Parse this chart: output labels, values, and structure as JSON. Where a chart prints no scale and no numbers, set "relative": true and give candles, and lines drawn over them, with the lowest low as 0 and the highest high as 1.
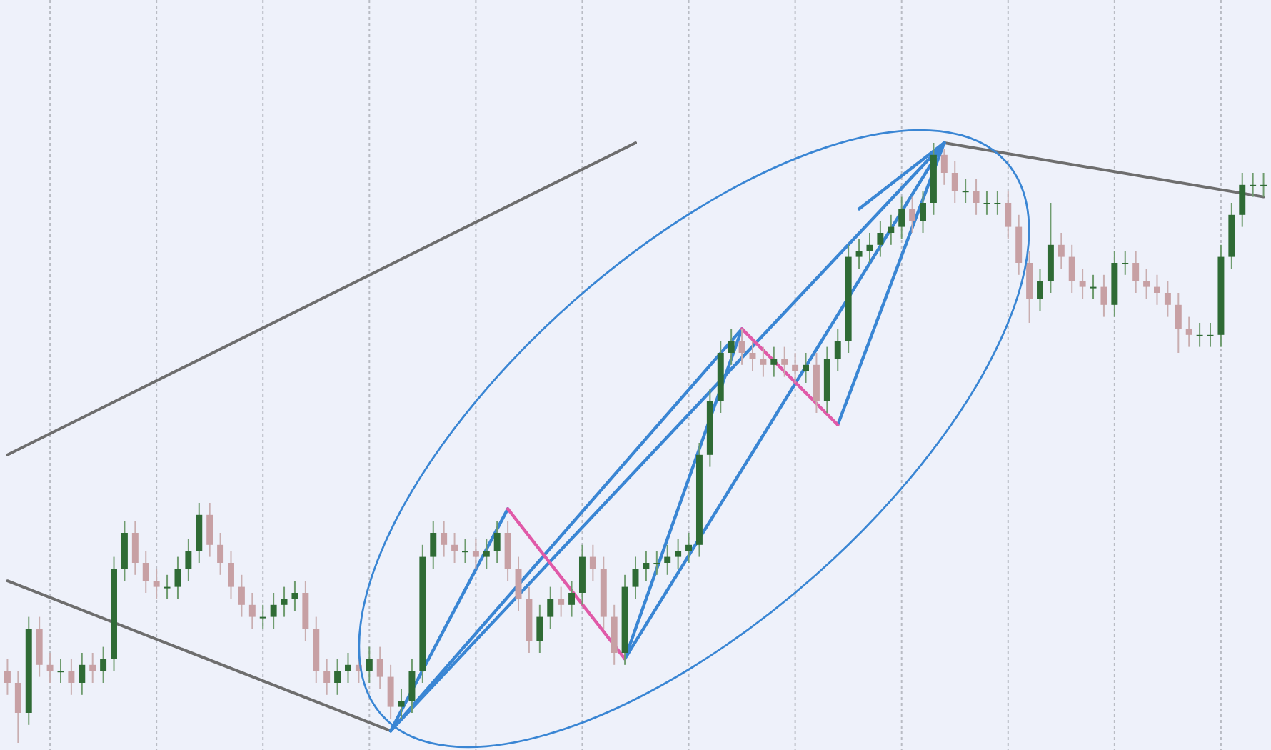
{
  "chart_data": {
    "type": "candlestick",
    "relative": true,
    "grid": "x",
    "categories": [
      null,
      null,
      null,
      null,
      null,
      null,
      null,
      null,
      null,
      null,
      null,
      null,
      null,
      null,
      null,
      null,
      null,
      null,
      null,
      null,
      null,
      null,
      null,
      null,
      null,
      null,
      null,
      null,
      null,
      null,
      null,
      null,
      null,
      null,
      null,
      null,
      null,
      null,
      null,
      null,
      null,
      null,
      null,
      null,
      null,
      null,
      null,
      null,
      null,
      null,
      null,
      null,
      null,
      null,
      null,
      null,
      null,
      null,
      null,
      null,
      null,
      null,
      null,
      null,
      null,
      null,
      null,
      null,
      null,
      null,
      null,
      null,
      null,
      null,
      null,
      null,
      null,
      null,
      null,
      null,
      null,
      null,
      null,
      null,
      null,
      null,
      null,
      null,
      null,
      null,
      null,
      null,
      null,
      null,
      null,
      null,
      null,
      null,
      null,
      null,
      null,
      null,
      null,
      null,
      null,
      null,
      null,
      null,
      null,
      null,
      null,
      null,
      null,
      null,
      null,
      null,
      null,
      null,
      null
    ],
    "ohlc": [
      [
        0.12,
        0.14,
        0.08,
        0.1
      ],
      [
        0.1,
        0.12,
        0,
        0.05
      ],
      [
        0.05,
        0.21,
        0.03,
        0.19
      ],
      [
        0.19,
        0.21,
        0.11,
        0.13
      ],
      [
        0.13,
        0.15,
        0.1,
        0.12
      ],
      [
        0.12,
        0.14,
        0.1,
        0.12
      ],
      [
        0.12,
        0.14,
        0.08,
        0.1
      ],
      [
        0.1,
        0.15,
        0.08,
        0.13
      ],
      [
        0.13,
        0.15,
        0.1,
        0.12
      ],
      [
        0.12,
        0.16,
        0.1,
        0.14
      ],
      [
        0.14,
        0.31,
        0.12,
        0.29
      ],
      [
        0.29,
        0.37,
        0.27,
        0.35
      ],
      [
        0.35,
        0.37,
        0.28,
        0.3
      ],
      [
        0.3,
        0.32,
        0.25,
        0.27
      ],
      [
        0.27,
        0.29,
        0.24,
        0.26
      ],
      [
        0.26,
        0.28,
        0.24,
        0.26
      ],
      [
        0.26,
        0.31,
        0.24,
        0.29
      ],
      [
        0.29,
        0.34,
        0.27,
        0.32
      ],
      [
        0.32,
        0.4,
        0.3,
        0.38
      ],
      [
        0.38,
        0.4,
        0.31,
        0.33
      ],
      [
        0.33,
        0.35,
        0.28,
        0.3
      ],
      [
        0.3,
        0.32,
        0.24,
        0.26
      ],
      [
        0.26,
        0.28,
        0.21,
        0.23
      ],
      [
        0.23,
        0.25,
        0.19,
        0.21
      ],
      [
        0.21,
        0.23,
        0.19,
        0.21
      ],
      [
        0.21,
        0.25,
        0.19,
        0.23
      ],
      [
        0.23,
        0.26,
        0.21,
        0.24
      ],
      [
        0.24,
        0.27,
        0.22,
        0.25
      ],
      [
        0.25,
        0.27,
        0.17,
        0.19
      ],
      [
        0.19,
        0.21,
        0.1,
        0.12
      ],
      [
        0.12,
        0.14,
        0.08,
        0.1
      ],
      [
        0.1,
        0.14,
        0.08,
        0.12
      ],
      [
        0.12,
        0.15,
        0.1,
        0.13
      ],
      [
        0.13,
        0.15,
        0.1,
        0.12
      ],
      [
        0.12,
        0.16,
        0.1,
        0.14
      ],
      [
        0.14,
        0.16,
        0.09,
        0.11
      ],
      [
        0.11,
        0.13,
        0.04,
        0.06
      ],
      [
        0.06,
        0.09,
        0.04,
        0.07
      ],
      [
        0.07,
        0.14,
        0.05,
        0.12
      ],
      [
        0.12,
        0.33,
        0.1,
        0.31
      ],
      [
        0.31,
        0.37,
        0.29,
        0.35
      ],
      [
        0.35,
        0.37,
        0.31,
        0.33
      ],
      [
        0.33,
        0.35,
        0.3,
        0.32
      ],
      [
        0.32,
        0.34,
        0.3,
        0.32
      ],
      [
        0.32,
        0.34,
        0.29,
        0.31
      ],
      [
        0.31,
        0.34,
        0.29,
        0.32
      ],
      [
        0.32,
        0.37,
        0.3,
        0.35
      ],
      [
        0.35,
        0.37,
        0.27,
        0.29
      ],
      [
        0.29,
        0.31,
        0.22,
        0.24
      ],
      [
        0.24,
        0.26,
        0.15,
        0.17
      ],
      [
        0.17,
        0.23,
        0.15,
        0.21
      ],
      [
        0.21,
        0.26,
        0.19,
        0.24
      ],
      [
        0.24,
        0.26,
        0.21,
        0.23
      ],
      [
        0.23,
        0.27,
        0.21,
        0.25
      ],
      [
        0.25,
        0.33,
        0.23,
        0.31
      ],
      [
        0.31,
        0.33,
        0.27,
        0.29
      ],
      [
        0.29,
        0.31,
        0.19,
        0.21
      ],
      [
        0.21,
        0.23,
        0.13,
        0.15
      ],
      [
        0.15,
        0.28,
        0.13,
        0.26
      ],
      [
        0.26,
        0.31,
        0.24,
        0.29
      ],
      [
        0.29,
        0.32,
        0.27,
        0.3
      ],
      [
        0.3,
        0.32,
        0.28,
        0.3
      ],
      [
        0.3,
        0.33,
        0.28,
        0.31
      ],
      [
        0.31,
        0.34,
        0.29,
        0.32
      ],
      [
        0.32,
        0.35,
        0.3,
        0.33
      ],
      [
        0.33,
        0.5,
        0.31,
        0.48
      ],
      [
        0.48,
        0.59,
        0.46,
        0.57
      ],
      [
        0.57,
        0.67,
        0.55,
        0.65
      ],
      [
        0.65,
        0.69,
        0.63,
        0.67
      ],
      [
        0.67,
        0.69,
        0.63,
        0.65
      ],
      [
        0.65,
        0.67,
        0.62,
        0.64
      ],
      [
        0.64,
        0.66,
        0.61,
        0.63
      ],
      [
        0.63,
        0.66,
        0.61,
        0.64
      ],
      [
        0.64,
        0.66,
        0.61,
        0.63
      ],
      [
        0.63,
        0.65,
        0.6,
        0.62
      ],
      [
        0.62,
        0.65,
        0.6,
        0.63
      ],
      [
        0.63,
        0.65,
        0.55,
        0.57
      ],
      [
        0.57,
        0.66,
        0.55,
        0.64
      ],
      [
        0.64,
        0.69,
        0.62,
        0.67
      ],
      [
        0.67,
        0.83,
        0.65,
        0.81
      ],
      [
        0.81,
        0.84,
        0.79,
        0.82
      ],
      [
        0.82,
        0.85,
        0.8,
        0.83
      ],
      [
        0.83,
        0.87,
        0.81,
        0.85
      ],
      [
        0.85,
        0.88,
        0.83,
        0.86
      ],
      [
        0.86,
        0.91,
        0.84,
        0.89
      ],
      [
        0.89,
        0.91,
        0.85,
        0.87
      ],
      [
        0.87,
        0.92,
        0.85,
        0.9
      ],
      [
        0.9,
        1,
        0.88,
        0.98
      ],
      [
        0.98,
        0.99,
        0.93,
        0.95
      ],
      [
        0.95,
        0.97,
        0.9,
        0.92
      ],
      [
        0.92,
        0.94,
        0.9,
        0.92
      ],
      [
        0.92,
        0.94,
        0.88,
        0.9
      ],
      [
        0.9,
        0.92,
        0.88,
        0.9
      ],
      [
        0.9,
        0.92,
        0.88,
        0.9
      ],
      [
        0.9,
        0.92,
        0.84,
        0.86
      ],
      [
        0.86,
        0.88,
        0.78,
        0.8
      ],
      [
        0.8,
        0.82,
        0.7,
        0.74
      ],
      [
        0.74,
        0.79,
        0.72,
        0.77
      ],
      [
        0.77,
        0.9,
        0.75,
        0.83
      ],
      [
        0.83,
        0.85,
        0.79,
        0.81
      ],
      [
        0.81,
        0.83,
        0.75,
        0.77
      ],
      [
        0.77,
        0.79,
        0.74,
        0.76
      ],
      [
        0.76,
        0.78,
        0.74,
        0.76
      ],
      [
        0.76,
        0.78,
        0.71,
        0.73
      ],
      [
        0.73,
        0.82,
        0.71,
        0.8
      ],
      [
        0.8,
        0.82,
        0.78,
        0.8
      ],
      [
        0.8,
        0.82,
        0.75,
        0.77
      ],
      [
        0.77,
        0.79,
        0.74,
        0.76
      ],
      [
        0.76,
        0.78,
        0.73,
        0.75
      ],
      [
        0.75,
        0.77,
        0.71,
        0.73
      ],
      [
        0.73,
        0.75,
        0.65,
        0.69
      ],
      [
        0.69,
        0.71,
        0.66,
        0.68
      ],
      [
        0.68,
        0.7,
        0.66,
        0.68
      ],
      [
        0.68,
        0.7,
        0.66,
        0.68
      ],
      [
        0.68,
        0.83,
        0.66,
        0.81
      ],
      [
        0.81,
        0.9,
        0.79,
        0.88
      ],
      [
        0.88,
        0.95,
        0.86,
        0.93
      ],
      [
        0.93,
        0.95,
        0.91,
        0.93
      ],
      [
        0.93,
        0.95,
        0.91,
        0.93
      ]
    ],
    "series": [
      {
        "type": "line",
        "color": "#6e6e6e",
        "values": [
          0.27,
          null,
          null,
          null,
          null,
          null,
          null,
          null,
          null,
          null,
          null,
          null,
          null,
          null,
          null,
          null,
          null,
          null,
          null,
          null,
          null,
          null,
          null,
          null,
          null,
          null,
          null,
          null,
          null,
          null,
          null,
          null,
          null,
          null,
          null,
          null,
          0.02,
          null,
          null,
          null,
          null,
          null,
          null,
          null,
          null,
          null,
          null,
          null,
          null,
          null,
          null,
          null,
          null,
          null,
          null,
          null,
          null,
          null,
          null,
          null,
          null,
          null,
          null,
          null,
          null,
          null,
          null,
          null,
          null,
          null,
          null,
          null,
          null,
          null,
          null,
          null,
          null,
          null,
          null,
          null,
          null,
          null,
          null,
          null,
          null,
          null,
          null,
          null,
          null,
          null,
          null,
          null,
          null,
          null,
          null,
          null,
          null,
          null,
          null,
          null,
          null,
          null,
          null,
          null,
          null,
          null,
          null,
          null,
          null,
          null,
          null,
          null,
          null,
          null,
          null,
          null,
          null,
          null,
          null
        ]
      },
      {
        "type": "line",
        "color": "#6e6e6e",
        "values": [
          0.48,
          null,
          null,
          null,
          null,
          null,
          null,
          null,
          null,
          null,
          null,
          null,
          null,
          null,
          null,
          null,
          null,
          null,
          null,
          null,
          null,
          null,
          null,
          null,
          null,
          null,
          null,
          null,
          null,
          null,
          null,
          null,
          null,
          null,
          null,
          null,
          null,
          null,
          null,
          null,
          null,
          null,
          null,
          null,
          null,
          null,
          null,
          null,
          null,
          null,
          null,
          null,
          null,
          null,
          null,
          null,
          null,
          null,
          null,
          1,
          null,
          null,
          null,
          null,
          null,
          null,
          null,
          null,
          null,
          null,
          null,
          null,
          null,
          null,
          null,
          null,
          null,
          null,
          null,
          null,
          null,
          null,
          null,
          null,
          null,
          null,
          null,
          null,
          null,
          null,
          null,
          null,
          null,
          null,
          null,
          null,
          null,
          null,
          null,
          null,
          null,
          null,
          null,
          null,
          null,
          null,
          null,
          null,
          null,
          null,
          null,
          null,
          null,
          null,
          null,
          null,
          null,
          null,
          null
        ]
      },
      {
        "type": "line",
        "color": "#6e6e6e",
        "values": [
          null,
          null,
          null,
          null,
          null,
          null,
          null,
          null,
          null,
          null,
          null,
          null,
          null,
          null,
          null,
          null,
          null,
          null,
          null,
          null,
          null,
          null,
          null,
          null,
          null,
          null,
          null,
          null,
          null,
          null,
          null,
          null,
          null,
          null,
          null,
          null,
          null,
          null,
          null,
          null,
          null,
          null,
          null,
          null,
          null,
          null,
          null,
          null,
          null,
          null,
          null,
          null,
          null,
          null,
          null,
          null,
          null,
          null,
          null,
          null,
          null,
          null,
          null,
          null,
          null,
          null,
          null,
          null,
          null,
          null,
          null,
          null,
          null,
          null,
          null,
          null,
          null,
          null,
          null,
          null,
          null,
          null,
          null,
          null,
          null,
          null,
          null,
          null,
          1,
          null,
          null,
          null,
          null,
          null,
          null,
          null,
          null,
          null,
          null,
          null,
          null,
          null,
          null,
          null,
          null,
          null,
          null,
          null,
          null,
          null,
          null,
          null,
          null,
          null,
          null,
          null,
          null,
          null,
          0.91
        ]
      },
      {
        "type": "line",
        "color": "#3a86d4",
        "values": [
          null,
          null,
          null,
          null,
          null,
          null,
          null,
          null,
          null,
          null,
          null,
          null,
          null,
          null,
          null,
          null,
          null,
          null,
          null,
          null,
          null,
          null,
          null,
          null,
          null,
          null,
          null,
          null,
          null,
          null,
          null,
          null,
          null,
          null,
          null,
          null,
          0.02,
          null,
          null,
          null,
          null,
          null,
          null,
          null,
          null,
          null,
          null,
          0.39,
          null,
          null,
          null,
          null,
          null,
          null,
          null,
          null,
          null,
          null,
          null,
          null,
          null,
          null,
          null,
          null,
          null,
          null,
          null,
          null,
          null,
          null,
          null,
          null,
          null,
          null,
          null,
          null,
          null,
          null,
          null,
          null,
          null,
          null,
          null,
          null,
          null,
          null,
          null,
          null,
          null,
          null,
          null,
          null,
          null,
          null,
          null,
          null,
          null,
          null,
          null,
          null,
          null,
          null,
          null,
          null,
          null,
          null,
          null,
          null,
          null,
          null,
          null,
          null,
          null,
          null,
          null,
          null,
          null,
          null,
          null
        ]
      },
      {
        "type": "line",
        "color": "#3a86d4",
        "values": [
          null,
          null,
          null,
          null,
          null,
          null,
          null,
          null,
          null,
          null,
          null,
          null,
          null,
          null,
          null,
          null,
          null,
          null,
          null,
          null,
          null,
          null,
          null,
          null,
          null,
          null,
          null,
          null,
          null,
          null,
          null,
          null,
          null,
          null,
          null,
          null,
          0.02,
          null,
          null,
          null,
          null,
          null,
          null,
          null,
          null,
          null,
          null,
          null,
          null,
          null,
          null,
          null,
          null,
          null,
          null,
          null,
          null,
          null,
          null,
          null,
          null,
          null,
          null,
          null,
          null,
          null,
          null,
          null,
          null,
          0.69,
          null,
          null,
          null,
          null,
          null,
          null,
          null,
          null,
          null,
          null,
          null,
          null,
          null,
          null,
          null,
          null,
          null,
          null,
          null,
          null,
          null,
          null,
          null,
          null,
          null,
          null,
          null,
          null,
          null,
          null,
          null,
          null,
          null,
          null,
          null,
          null,
          null,
          null,
          null,
          null,
          null,
          null,
          null,
          null,
          null,
          null,
          null,
          null,
          null
        ]
      },
      {
        "type": "line",
        "color": "#3a86d4",
        "values": [
          null,
          null,
          null,
          null,
          null,
          null,
          null,
          null,
          null,
          null,
          null,
          null,
          null,
          null,
          null,
          null,
          null,
          null,
          null,
          null,
          null,
          null,
          null,
          null,
          null,
          null,
          null,
          null,
          null,
          null,
          null,
          null,
          null,
          null,
          null,
          null,
          0.02,
          null,
          null,
          null,
          null,
          null,
          null,
          null,
          null,
          null,
          null,
          null,
          null,
          null,
          null,
          null,
          null,
          null,
          null,
          null,
          null,
          null,
          null,
          null,
          null,
          null,
          null,
          null,
          null,
          null,
          null,
          null,
          null,
          null,
          null,
          null,
          null,
          null,
          null,
          null,
          null,
          null,
          null,
          null,
          null,
          null,
          null,
          null,
          null,
          null,
          null,
          null,
          1,
          null,
          null,
          null,
          null,
          null,
          null,
          null,
          null,
          null,
          null,
          null,
          null,
          null,
          null,
          null,
          null,
          null,
          null,
          null,
          null,
          null,
          null,
          null,
          null,
          null,
          null,
          null,
          null,
          null,
          null
        ]
      },
      {
        "type": "line",
        "color": "#3a86d4",
        "values": [
          null,
          null,
          null,
          null,
          null,
          null,
          null,
          null,
          null,
          null,
          null,
          null,
          null,
          null,
          null,
          null,
          null,
          null,
          null,
          null,
          null,
          null,
          null,
          null,
          null,
          null,
          null,
          null,
          null,
          null,
          null,
          null,
          null,
          null,
          null,
          null,
          null,
          null,
          null,
          null,
          null,
          null,
          null,
          null,
          null,
          null,
          null,
          null,
          null,
          null,
          null,
          null,
          null,
          null,
          null,
          null,
          null,
          null,
          0.14,
          null,
          null,
          null,
          null,
          null,
          null,
          null,
          null,
          null,
          null,
          0.69,
          null,
          null,
          null,
          null,
          null,
          null,
          null,
          null,
          null,
          null,
          null,
          null,
          null,
          null,
          null,
          null,
          null,
          null,
          null,
          null,
          null,
          null,
          null,
          null,
          null,
          null,
          null,
          null,
          null,
          null,
          null,
          null,
          null,
          null,
          null,
          null,
          null,
          null,
          null,
          null,
          null,
          null,
          null,
          null,
          null,
          null,
          null,
          null,
          null
        ]
      },
      {
        "type": "line",
        "color": "#3a86d4",
        "values": [
          null,
          null,
          null,
          null,
          null,
          null,
          null,
          null,
          null,
          null,
          null,
          null,
          null,
          null,
          null,
          null,
          null,
          null,
          null,
          null,
          null,
          null,
          null,
          null,
          null,
          null,
          null,
          null,
          null,
          null,
          null,
          null,
          null,
          null,
          null,
          null,
          null,
          null,
          null,
          null,
          null,
          null,
          null,
          null,
          null,
          null,
          null,
          null,
          null,
          null,
          null,
          null,
          null,
          null,
          null,
          null,
          null,
          null,
          0.14,
          null,
          null,
          null,
          null,
          null,
          null,
          null,
          null,
          null,
          null,
          null,
          null,
          null,
          null,
          null,
          null,
          null,
          null,
          null,
          null,
          null,
          null,
          null,
          null,
          null,
          null,
          null,
          null,
          null,
          1,
          null,
          null,
          null,
          null,
          null,
          null,
          null,
          null,
          null,
          null,
          null,
          null,
          null,
          null,
          null,
          null,
          null,
          null,
          null,
          null,
          null,
          null,
          null,
          null,
          null,
          null,
          null,
          null,
          null,
          null
        ]
      },
      {
        "type": "line",
        "color": "#3a86d4",
        "values": [
          null,
          null,
          null,
          null,
          null,
          null,
          null,
          null,
          null,
          null,
          null,
          null,
          null,
          null,
          null,
          null,
          null,
          null,
          null,
          null,
          null,
          null,
          null,
          null,
          null,
          null,
          null,
          null,
          null,
          null,
          null,
          null,
          null,
          null,
          null,
          null,
          null,
          null,
          null,
          null,
          null,
          null,
          null,
          null,
          null,
          null,
          null,
          null,
          null,
          null,
          null,
          null,
          null,
          null,
          null,
          null,
          null,
          null,
          null,
          null,
          null,
          null,
          null,
          null,
          null,
          null,
          null,
          null,
          null,
          null,
          null,
          null,
          null,
          null,
          null,
          null,
          null,
          null,
          0.53,
          null,
          null,
          null,
          null,
          null,
          null,
          null,
          null,
          null,
          1,
          null,
          null,
          null,
          null,
          null,
          null,
          null,
          null,
          null,
          null,
          null,
          null,
          null,
          null,
          null,
          null,
          null,
          null,
          null,
          null,
          null,
          null,
          null,
          null,
          null,
          null,
          null,
          null,
          null,
          null
        ]
      },
      {
        "type": "line",
        "color": "#3a86d4",
        "values": [
          null,
          null,
          null,
          null,
          null,
          null,
          null,
          null,
          null,
          null,
          null,
          null,
          null,
          null,
          null,
          null,
          null,
          null,
          null,
          null,
          null,
          null,
          null,
          null,
          null,
          null,
          null,
          null,
          null,
          null,
          null,
          null,
          null,
          null,
          null,
          null,
          null,
          null,
          null,
          null,
          null,
          null,
          null,
          null,
          null,
          null,
          null,
          null,
          null,
          null,
          null,
          null,
          null,
          null,
          null,
          null,
          null,
          null,
          null,
          null,
          null,
          null,
          null,
          null,
          null,
          null,
          null,
          null,
          null,
          null,
          null,
          null,
          null,
          null,
          null,
          null,
          null,
          null,
          null,
          null,
          0.89,
          null,
          null,
          null,
          null,
          null,
          null,
          null,
          1,
          null,
          null,
          null,
          null,
          null,
          null,
          null,
          null,
          null,
          null,
          null,
          null,
          null,
          null,
          null,
          null,
          null,
          null,
          null,
          null,
          null,
          null,
          null,
          null,
          null,
          null,
          null,
          null,
          null,
          null
        ]
      },
      {
        "type": "line",
        "color": "#e05aa8",
        "values": [
          null,
          null,
          null,
          null,
          null,
          null,
          null,
          null,
          null,
          null,
          null,
          null,
          null,
          null,
          null,
          null,
          null,
          null,
          null,
          null,
          null,
          null,
          null,
          null,
          null,
          null,
          null,
          null,
          null,
          null,
          null,
          null,
          null,
          null,
          null,
          null,
          null,
          null,
          null,
          null,
          null,
          null,
          null,
          null,
          null,
          null,
          null,
          0.39,
          null,
          null,
          null,
          null,
          null,
          null,
          null,
          null,
          null,
          null,
          0.14,
          null,
          null,
          null,
          null,
          null,
          null,
          null,
          null,
          null,
          null,
          null,
          null,
          null,
          null,
          null,
          null,
          null,
          null,
          null,
          null,
          null,
          null,
          null,
          null,
          null,
          null,
          null,
          null,
          null,
          null,
          null,
          null,
          null,
          null,
          null,
          null,
          null,
          null,
          null,
          null,
          null,
          null,
          null,
          null,
          null,
          null,
          null,
          null,
          null,
          null,
          null,
          null,
          null,
          null,
          null,
          null,
          null,
          null,
          null,
          null
        ]
      },
      {
        "type": "line",
        "color": "#e05aa8",
        "values": [
          null,
          null,
          null,
          null,
          null,
          null,
          null,
          null,
          null,
          null,
          null,
          null,
          null,
          null,
          null,
          null,
          null,
          null,
          null,
          null,
          null,
          null,
          null,
          null,
          null,
          null,
          null,
          null,
          null,
          null,
          null,
          null,
          null,
          null,
          null,
          null,
          null,
          null,
          null,
          null,
          null,
          null,
          null,
          null,
          null,
          null,
          null,
          null,
          null,
          null,
          null,
          null,
          null,
          null,
          null,
          null,
          null,
          null,
          null,
          null,
          null,
          null,
          null,
          null,
          null,
          null,
          null,
          null,
          null,
          0.69,
          null,
          null,
          null,
          null,
          null,
          null,
          null,
          null,
          0.53,
          null,
          null,
          null,
          null,
          null,
          null,
          null,
          null,
          null,
          null,
          null,
          null,
          null,
          null,
          null,
          null,
          null,
          null,
          null,
          null,
          null,
          null,
          null,
          null,
          null,
          null,
          null,
          null,
          null,
          null,
          null,
          null,
          null,
          null,
          null,
          null,
          null,
          null,
          null,
          null
        ]
      }
    ]
  }
}
